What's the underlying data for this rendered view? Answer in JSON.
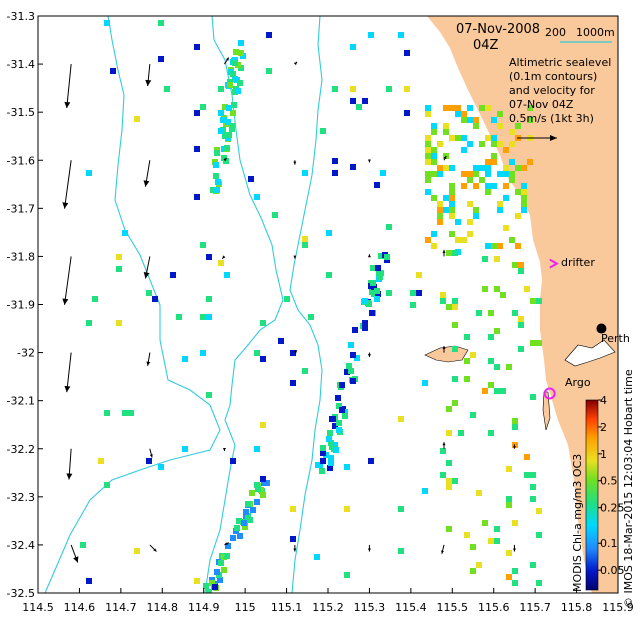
{
  "map": {
    "title_date": "07-Nov-2008",
    "title_time": "04Z",
    "depth_legend": {
      "label_a": "200",
      "label_b": "1000m"
    },
    "sealevel_caption": [
      "Altimetric sealevel",
      "(0.1m contours)",
      "and velocity for",
      "07-Nov 04Z"
    ],
    "velocity_scale_label": "0.5m/s (1kt 3h)",
    "credit_text": "© IMOS 18-Mar-2015 12:03:04 Hobart time",
    "colorbar_label": "MODIS Chl-a mg/m3 OC3",
    "colorbar_ticks": [
      "4",
      "2",
      "1",
      "0.5",
      "0.25",
      "0.1",
      "0.05"
    ],
    "places": {
      "perth": "Perth",
      "drifter": "drifter",
      "argo": "Argo"
    },
    "colors": {
      "land": "#F9C89B",
      "isobath": "#33CCDD",
      "drifter_marker": "#EE22EE",
      "argo_marker": "#EE22EE"
    },
    "x_ticks": [
      "114.5",
      "114.6",
      "114.7",
      "114.8",
      "114.9",
      "115",
      "115.1",
      "115.2",
      "115.3",
      "115.4",
      "115.5",
      "115.6",
      "115.7",
      "115.8",
      "115.9"
    ],
    "y_ticks": [
      "-31.3",
      "-31.4",
      "-31.5",
      "-31.6",
      "-31.7",
      "-31.8",
      "-31.9",
      "-32",
      "-32.1",
      "-32.2",
      "-32.3",
      "-32.4",
      "-32.5"
    ]
  },
  "chart_data": {
    "type": "heatmap",
    "variable": "MODIS Chl-a mg/m3 OC3",
    "xlim": [
      114.5,
      115.9
    ],
    "ylim": [
      -32.5,
      -31.3
    ],
    "colorbar_scale": "log",
    "colorbar_range": [
      0.03,
      4
    ],
    "markers": [
      {
        "label": "Perth",
        "lon": 115.86,
        "lat": -31.95
      },
      {
        "label": "drifter",
        "lon": 115.745,
        "lat": -31.815
      },
      {
        "label": "Argo",
        "lon": 115.735,
        "lat": -32.085
      }
    ],
    "velocity_arrows": [
      {
        "lon": 114.58,
        "lat": -31.4,
        "u": -0.02,
        "v": -0.2
      },
      {
        "lon": 114.58,
        "lat": -31.6,
        "u": -0.03,
        "v": -0.22
      },
      {
        "lon": 114.58,
        "lat": -31.8,
        "u": -0.03,
        "v": -0.22
      },
      {
        "lon": 114.58,
        "lat": -32.0,
        "u": -0.02,
        "v": -0.18
      },
      {
        "lon": 114.58,
        "lat": -32.2,
        "u": -0.01,
        "v": -0.14
      },
      {
        "lon": 114.58,
        "lat": -32.4,
        "u": 0.03,
        "v": -0.08
      },
      {
        "lon": 114.77,
        "lat": -31.4,
        "u": -0.01,
        "v": -0.1
      },
      {
        "lon": 114.77,
        "lat": -31.6,
        "u": -0.02,
        "v": -0.12
      },
      {
        "lon": 114.77,
        "lat": -31.8,
        "u": -0.02,
        "v": -0.1
      },
      {
        "lon": 114.77,
        "lat": -32.0,
        "u": -0.01,
        "v": -0.06
      },
      {
        "lon": 114.77,
        "lat": -32.2,
        "u": 0.01,
        "v": -0.04
      },
      {
        "lon": 114.77,
        "lat": -32.4,
        "u": 0.03,
        "v": -0.03
      },
      {
        "lon": 114.95,
        "lat": -31.4,
        "u": 0.02,
        "v": 0.03
      },
      {
        "lon": 114.95,
        "lat": -31.6,
        "u": 0.01,
        "v": 0.01
      },
      {
        "lon": 114.95,
        "lat": -31.8,
        "u": -0.01,
        "v": -0.01
      },
      {
        "lon": 114.95,
        "lat": -32.2,
        "u": 0.0,
        "v": -0.01
      },
      {
        "lon": 114.95,
        "lat": -32.4,
        "u": 0.02,
        "v": 0.01
      },
      {
        "lon": 115.12,
        "lat": -31.4,
        "u": 0.01,
        "v": 0.01
      },
      {
        "lon": 115.12,
        "lat": -31.6,
        "u": 0.0,
        "v": -0.02
      },
      {
        "lon": 115.12,
        "lat": -31.8,
        "u": 0.0,
        "v": -0.01
      },
      {
        "lon": 115.12,
        "lat": -32.0,
        "u": 0.01,
        "v": 0.01
      },
      {
        "lon": 115.12,
        "lat": -32.4,
        "u": 0.0,
        "v": -0.03
      },
      {
        "lon": 115.3,
        "lat": -31.6,
        "u": 0.0,
        "v": -0.01
      },
      {
        "lon": 115.3,
        "lat": -31.8,
        "u": 0.0,
        "v": 0.01
      },
      {
        "lon": 115.3,
        "lat": -32.0,
        "u": 0.0,
        "v": -0.02
      },
      {
        "lon": 115.3,
        "lat": -32.4,
        "u": 0.0,
        "v": -0.03
      },
      {
        "lon": 115.48,
        "lat": -31.6,
        "u": 0.01,
        "v": 0.02
      },
      {
        "lon": 115.48,
        "lat": -31.8,
        "u": 0.0,
        "v": 0.03
      },
      {
        "lon": 115.48,
        "lat": -32.0,
        "u": 0.0,
        "v": 0.03
      },
      {
        "lon": 115.48,
        "lat": -32.2,
        "u": 0.0,
        "v": 0.03
      },
      {
        "lon": 115.48,
        "lat": -32.4,
        "u": -0.01,
        "v": -0.04
      },
      {
        "lon": 115.65,
        "lat": -32.2,
        "u": 0.0,
        "v": 0.02
      },
      {
        "lon": 115.65,
        "lat": -32.4,
        "u": 0.0,
        "v": -0.03
      }
    ]
  }
}
